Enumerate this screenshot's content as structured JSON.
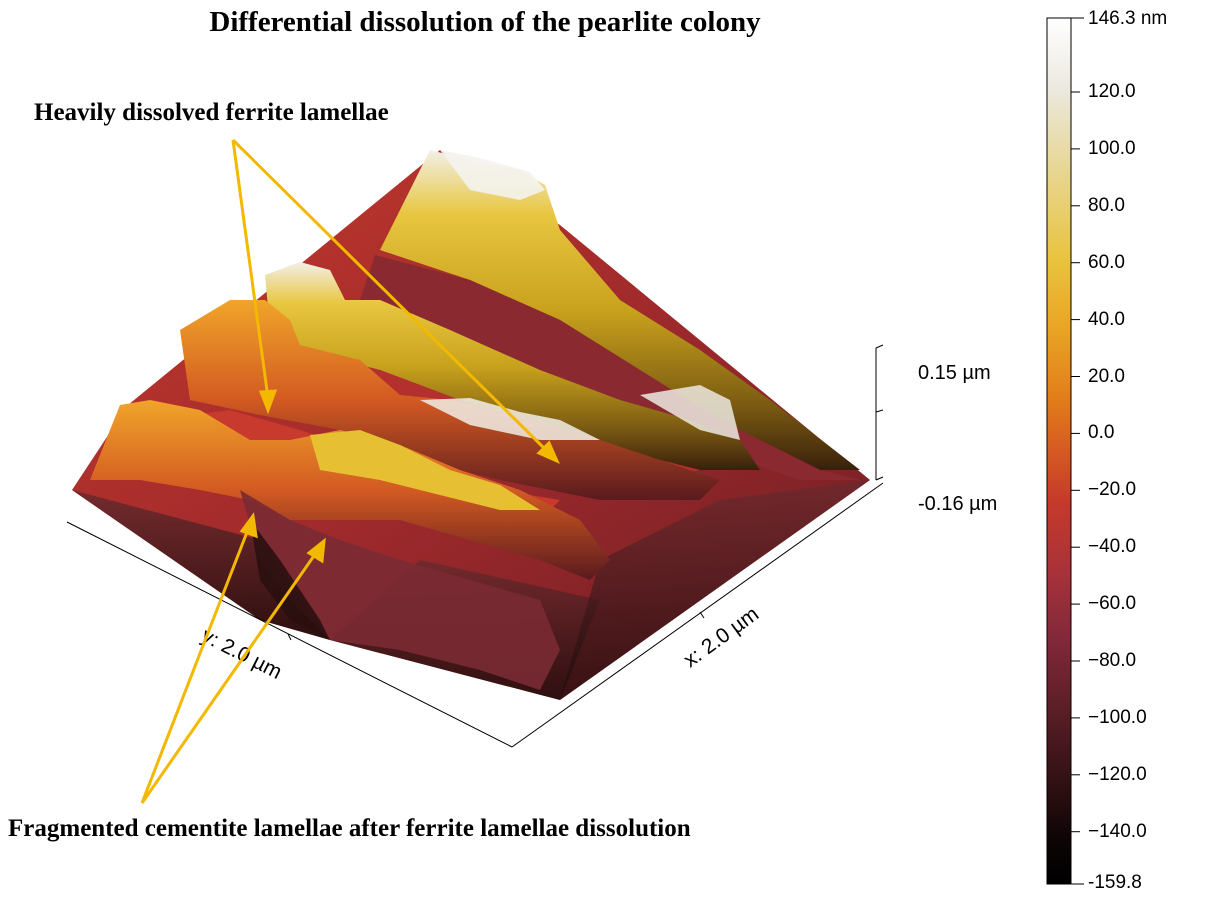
{
  "title": "Differential dissolution of the pearlite colony",
  "annotations": {
    "top": "Heavily dissolved ferrite lamellae",
    "bottom": "Fragmented cementite lamellae after ferrite lamellae dissolution"
  },
  "axes": {
    "x_label": "x: 2.0 µm",
    "y_label": "y: 2.0 µm",
    "z_top": "0.15 µm",
    "z_bottom": "-0.16 µm"
  },
  "colorbar": {
    "max_label": "146.3 nm",
    "min_label": "-159.8",
    "ticks": [
      "120.0",
      "100.0",
      "80.0",
      "60.0",
      "40.0",
      "20.0",
      "0.0",
      "−20.0",
      "−40.0",
      "−60.0",
      "−80.0",
      "−100.0",
      "−120.0",
      "−140.0"
    ],
    "stops": [
      "#ffffff",
      "#ece9e0",
      "#e7d9a0",
      "#e9c33d",
      "#e9a424",
      "#e27d1a",
      "#d55a22",
      "#c5392b",
      "#a8323a",
      "#80283a",
      "#5a1e26",
      "#321114",
      "#0d0405",
      "#000000"
    ]
  },
  "annotation_color": "#f3b800"
}
